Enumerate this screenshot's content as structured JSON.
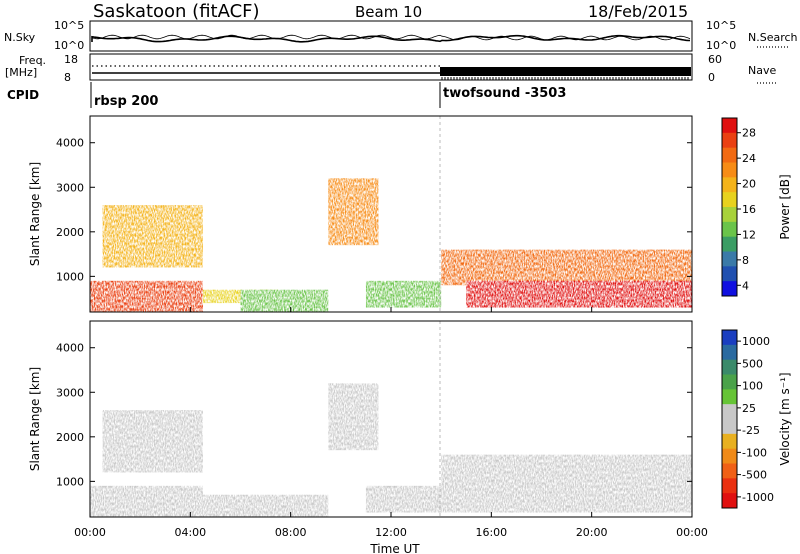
{
  "header": {
    "station": "Saskatoon (fitACF)",
    "beam": "Beam 10",
    "date": "18/Feb/2015"
  },
  "panels": {
    "nsky": {
      "left_label": "N.Sky",
      "left_ticks": [
        "10^5",
        "10^0"
      ],
      "right_ticks": [
        "10^5",
        "10^0"
      ],
      "right_label": "N.Search"
    },
    "freq": {
      "left_label_top": "Freq.",
      "left_label_bottom": "[MHz]",
      "left_ticks": [
        "18",
        "8"
      ],
      "right_ticks": [
        "60",
        "0"
      ],
      "right_label": "Nave"
    },
    "cpid": {
      "label": "CPID",
      "segments": [
        {
          "name": "rbsp 200",
          "start_hour": 0
        },
        {
          "name": "twofsound -3503",
          "start_hour": 14.0
        }
      ]
    }
  },
  "axes": {
    "xlabel": "Time UT",
    "x_ticks": [
      "00:00",
      "04:00",
      "08:00",
      "12:00",
      "16:00",
      "20:00",
      "00:00"
    ],
    "ylabel": "Slant Range [km]",
    "y_ticks": [
      "1000",
      "2000",
      "3000",
      "4000"
    ]
  },
  "colorbars": {
    "power": {
      "label": "Power [dB]",
      "ticks": [
        "4",
        "8",
        "12",
        "16",
        "20",
        "24",
        "28"
      ],
      "colors": [
        "#1010e0",
        "#2050b0",
        "#3a7aa8",
        "#3a9d64",
        "#6ac44a",
        "#a8d23a",
        "#e8d21e",
        "#f4b31a",
        "#f78c16",
        "#f26a12",
        "#ea4012",
        "#e01010"
      ]
    },
    "velocity": {
      "label": "Velocity [m s⁻¹]",
      "ticks": [
        "1000",
        "500",
        "100",
        "25",
        "-25",
        "-100",
        "-500",
        "-1000"
      ],
      "colors": [
        "#1a3ec0",
        "#2a6aa0",
        "#3a8a6a",
        "#4aa24a",
        "#66c436",
        "#c8c8c8",
        "#c8c8c8",
        "#e8b020",
        "#f08a18",
        "#f06016",
        "#ea3010",
        "#e01010"
      ]
    }
  },
  "chart_data": [
    {
      "type": "heatmap",
      "title": "Power",
      "xlabel": "Time UT",
      "ylabel": "Slant Range [km]",
      "xlim": [
        0,
        24
      ],
      "ylim": [
        200,
        4600
      ],
      "colorbar": {
        "label": "Power [dB]",
        "range": [
          0,
          30
        ]
      },
      "regions": [
        {
          "t": [
            0.0,
            4.5
          ],
          "range_km": [
            200,
            900
          ],
          "power_db": 26
        },
        {
          "t": [
            0.5,
            4.5
          ],
          "range_km": [
            1200,
            2600
          ],
          "power_db": 18
        },
        {
          "t": [
            4.5,
            7.5
          ],
          "range_km": [
            400,
            700
          ],
          "power_db": 16
        },
        {
          "t": [
            6.0,
            9.5
          ],
          "range_km": [
            200,
            700
          ],
          "power_db": 12
        },
        {
          "t": [
            9.5,
            11.5
          ],
          "range_km": [
            1700,
            3200
          ],
          "power_db": 20
        },
        {
          "t": [
            11.0,
            14.0
          ],
          "range_km": [
            300,
            900
          ],
          "power_db": 10
        },
        {
          "t": [
            14.0,
            24.0
          ],
          "range_km": [
            800,
            1600
          ],
          "power_db": 24
        },
        {
          "t": [
            15.0,
            24.0
          ],
          "range_km": [
            300,
            900
          ],
          "power_db": 28
        }
      ]
    },
    {
      "type": "heatmap",
      "title": "Velocity",
      "xlabel": "Time UT",
      "ylabel": "Slant Range [km]",
      "xlim": [
        0,
        24
      ],
      "ylim": [
        200,
        4600
      ],
      "colorbar": {
        "label": "Velocity [m s⁻¹]",
        "range": [
          -1000,
          1000
        ]
      },
      "regions": [
        {
          "t": [
            0.0,
            4.5
          ],
          "range_km": [
            200,
            900
          ],
          "velocity_ms": 60
        },
        {
          "t": [
            0.5,
            4.5
          ],
          "range_km": [
            1200,
            2600
          ],
          "velocity_ms": 0
        },
        {
          "t": [
            4.5,
            9.5
          ],
          "range_km": [
            200,
            700
          ],
          "velocity_ms": 80
        },
        {
          "t": [
            9.5,
            11.5
          ],
          "range_km": [
            1700,
            3200
          ],
          "velocity_ms": 0
        },
        {
          "t": [
            11.0,
            14.0
          ],
          "range_km": [
            300,
            900
          ],
          "velocity_ms": -80
        },
        {
          "t": [
            14.0,
            24.0
          ],
          "range_km": [
            300,
            1600
          ],
          "velocity_ms": 0
        }
      ]
    }
  ]
}
